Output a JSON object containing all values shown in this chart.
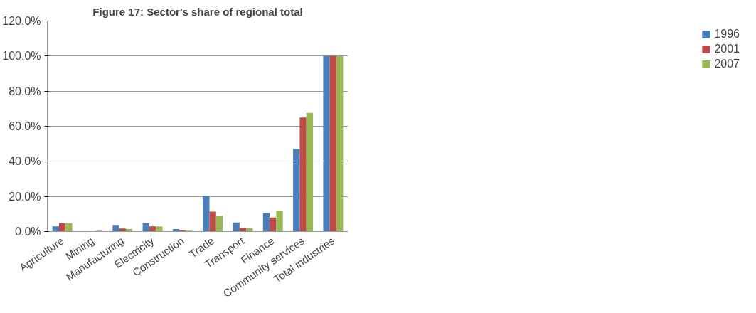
{
  "chart_data": {
    "type": "bar",
    "title": "Figure 17: Sector's share of regional total",
    "categories": [
      "Agriculture",
      "Mining",
      "Manufacturing",
      "Electricity",
      "Construction",
      "Trade",
      "Transport",
      "Finance",
      "Community services",
      "Total industries"
    ],
    "series": [
      {
        "name": "1996",
        "color": "#4a7ebb",
        "values": [
          2.9,
          0,
          3.8,
          4.8,
          1.4,
          20.2,
          5.2,
          10.5,
          47,
          100
        ]
      },
      {
        "name": "2001",
        "color": "#be4b48",
        "values": [
          4.8,
          0,
          1.7,
          2.9,
          0.7,
          11.4,
          2.1,
          8,
          65,
          100
        ]
      },
      {
        "name": "2007",
        "color": "#98b954",
        "values": [
          4.8,
          0.5,
          1.4,
          2.9,
          0.5,
          9,
          1.9,
          12,
          67.6,
          100
        ]
      }
    ],
    "ylim": [
      0,
      120
    ],
    "yticks": [
      {
        "value": 0,
        "label": "0.0%"
      },
      {
        "value": 20,
        "label": "20.0%"
      },
      {
        "value": 40,
        "label": "40.0%"
      },
      {
        "value": 60,
        "label": "60.0%"
      },
      {
        "value": 80,
        "label": "80.0%"
      },
      {
        "value": 100,
        "label": "100.0%"
      },
      {
        "value": 120,
        "label": "120.0%"
      }
    ],
    "grid": "y",
    "legend": "right"
  }
}
